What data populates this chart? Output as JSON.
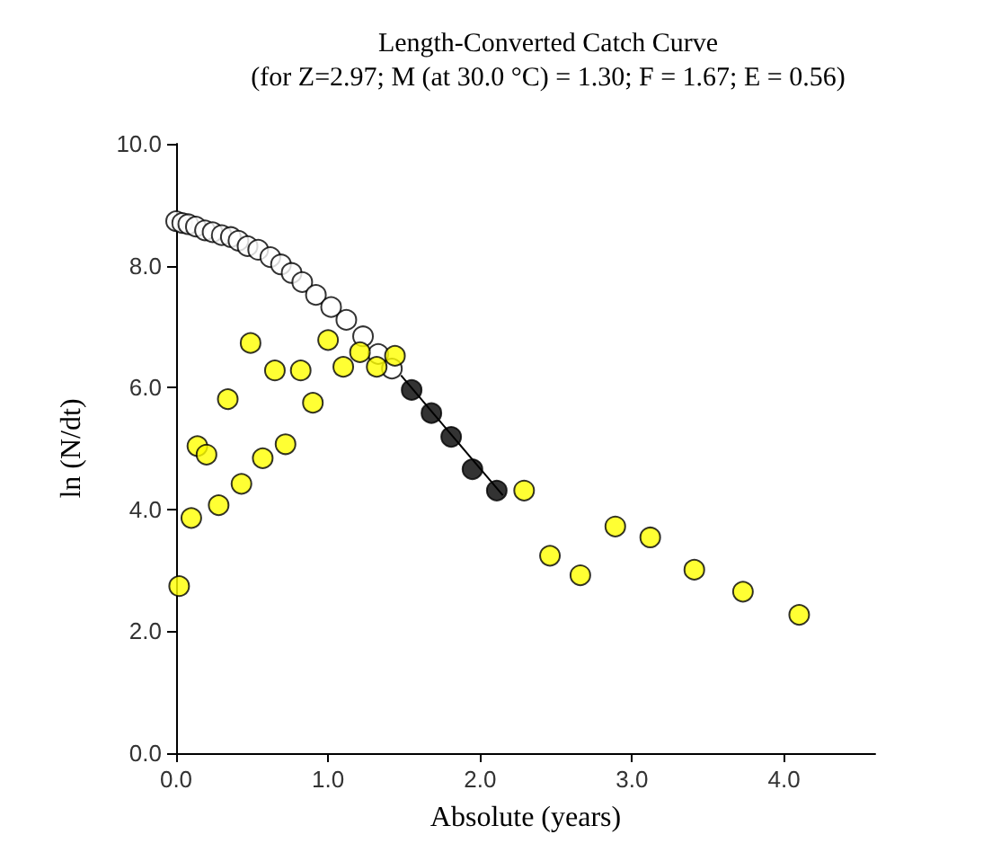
{
  "chart_data": {
    "type": "scatter",
    "title": "Length-Converted Catch Curve",
    "subtitle": "(for Z=2.97; M (at 30.0 °C) = 1.30; F = 1.67; E = 0.56)",
    "xlabel": "Absolute (years)",
    "ylabel": "ln (N/dt)",
    "xlim": [
      0,
      4.6
    ],
    "xticks": [
      {
        "value": 0,
        "label": "0.0"
      },
      {
        "value": 1,
        "label": "1.0"
      },
      {
        "value": 2,
        "label": "2.0"
      },
      {
        "value": 3,
        "label": "3.0"
      },
      {
        "value": 4,
        "label": "4.0"
      }
    ],
    "ylim": [
      0,
      10
    ],
    "yticks": [
      {
        "value": 0,
        "label": "0.0"
      },
      {
        "value": 2,
        "label": "2.0"
      },
      {
        "value": 4,
        "label": "4.0"
      },
      {
        "value": 6,
        "label": "6.0"
      },
      {
        "value": 8,
        "label": "8.0"
      },
      {
        "value": 10,
        "label": "10.0"
      }
    ],
    "grid": false,
    "marker": "circle",
    "series": [
      {
        "color": "#ffffff",
        "x": [
          0,
          0.04,
          0.08,
          0.13,
          0.19,
          0.24,
          0.3,
          0.36,
          0.41,
          0.47,
          0.54,
          0.62,
          0.69,
          0.76,
          0.83,
          0.92,
          1.02,
          1.12,
          1.23,
          1.33,
          1.42
        ],
        "values": [
          8.73,
          8.7,
          8.68,
          8.64,
          8.58,
          8.55,
          8.5,
          8.47,
          8.41,
          8.32,
          8.26,
          8.14,
          8.02,
          7.88,
          7.73,
          7.52,
          7.32,
          7.11,
          6.84,
          6.55,
          6.31
        ]
      },
      {
        "type": "line",
        "color": "#000000",
        "marker": "none",
        "x": [
          1.48,
          2.15
        ],
        "values": [
          6.2,
          4.23
        ]
      },
      {
        "color": "#ffff00",
        "x": [
          0.02,
          0.1,
          0.14,
          0.2,
          0.28,
          0.34,
          0.43,
          0.49,
          0.57,
          0.65,
          0.72,
          0.82,
          0.9,
          1.0,
          1.1,
          1.21,
          1.32,
          1.44,
          2.29,
          2.46,
          2.66,
          2.89,
          3.12,
          3.41,
          3.73,
          4.1
        ],
        "values": [
          2.74,
          3.86,
          5.04,
          4.9,
          4.07,
          5.81,
          4.42,
          6.73,
          4.84,
          6.28,
          5.07,
          6.28,
          5.75,
          6.78,
          6.34,
          6.58,
          6.34,
          6.52,
          4.31,
          3.24,
          2.92,
          3.72,
          3.54,
          3.01,
          2.65,
          2.27
        ]
      },
      {
        "color": "#000000",
        "x": [
          1.55,
          1.68,
          1.81,
          1.95,
          2.11
        ],
        "values": [
          5.96,
          5.58,
          5.19,
          4.66,
          4.31
        ]
      }
    ]
  }
}
